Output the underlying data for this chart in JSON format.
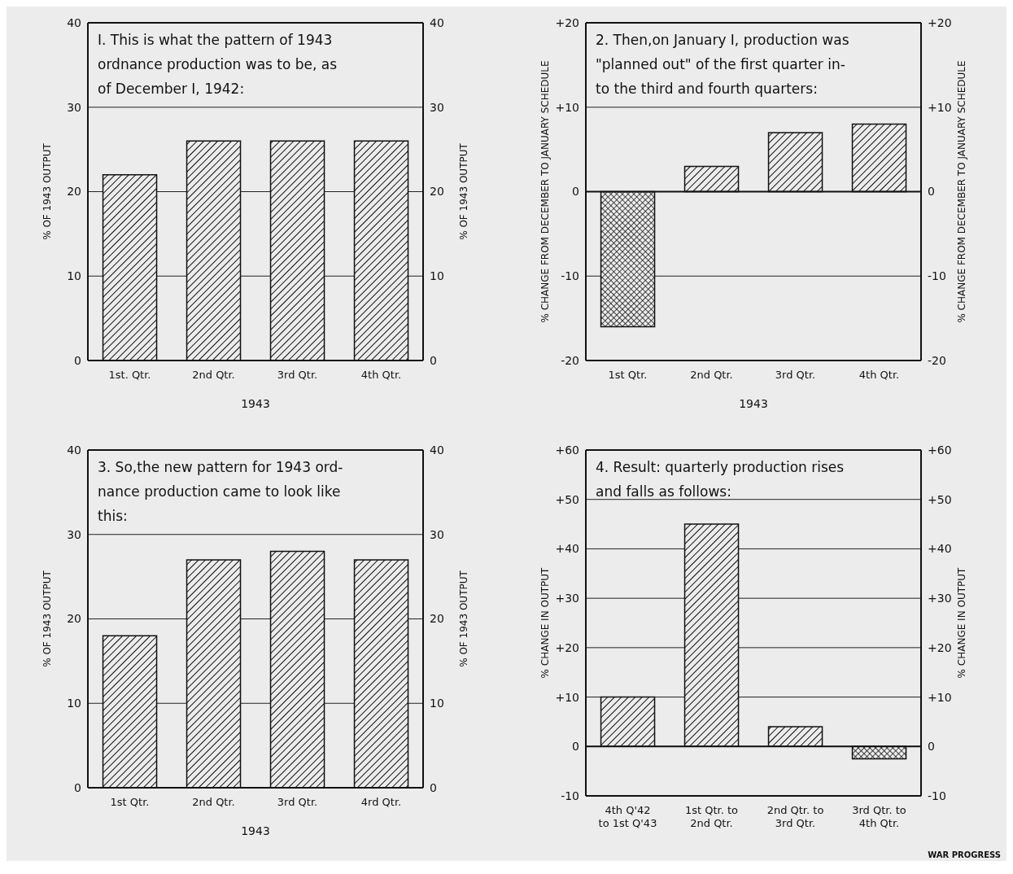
{
  "chart_data": [
    {
      "type": "bar",
      "title": "I. This is what the pattern of 1943\nordnance production was to be, as\nof December I, 1942:",
      "categories": [
        "1st. Qtr.",
        "2nd Qtr.",
        "3rd Qtr.",
        "4th Qtr."
      ],
      "xlabel": "1943",
      "ylabel": "% OF 1943 OUTPUT",
      "y2label": "% OF 1943 OUTPUT",
      "series": [
        {
          "color": "#111111",
          "values": [
            22,
            26,
            26,
            26
          ]
        }
      ],
      "ylim": [
        0,
        40
      ],
      "yticks": [
        0,
        10,
        20,
        30,
        40
      ],
      "y2lim": [
        0,
        40
      ],
      "y2ticks": [
        0,
        10,
        20,
        30,
        40
      ],
      "grid": "y"
    },
    {
      "type": "bar",
      "title": "2. Then,on January I, production was\n\"planned out\" of the first quarter in-\nto the third and fourth quarters:",
      "categories": [
        "1st Qtr.",
        "2nd Qtr.",
        "3rd Qtr.",
        "4th Qtr."
      ],
      "xlabel": "1943",
      "ylabel": "% CHANGE FROM DECEMBER TO JANUARY SCHEDULE",
      "y2label": "% CHANGE FROM DECEMBER TO JANUARY SCHEDULE",
      "series": [
        {
          "color": "#111111",
          "values": [
            -16,
            3,
            7,
            8
          ]
        }
      ],
      "ylim": [
        -20,
        20
      ],
      "yticks": [
        -20,
        -10,
        0,
        {
          "value": 10,
          "label": "+10"
        },
        {
          "value": 20,
          "label": "+20"
        }
      ],
      "y2lim": [
        -20,
        20
      ],
      "y2ticks": [
        -20,
        -10,
        0,
        {
          "value": 10,
          "label": "+10"
        },
        {
          "value": 20,
          "label": "+20"
        }
      ],
      "grid": "y"
    },
    {
      "type": "bar",
      "title": "3. So,the new pattern for 1943 ord-\nnance production came to look like\nthis:",
      "categories": [
        "1st Qtr.",
        "2nd Qtr.",
        "3rd Qtr.",
        "4rd Qtr."
      ],
      "xlabel": "1943",
      "ylabel": "% OF 1943 OUTPUT",
      "y2label": "% OF 1943 OUTPUT",
      "series": [
        {
          "color": "#111111",
          "values": [
            18,
            27,
            28,
            27
          ]
        }
      ],
      "ylim": [
        0,
        40
      ],
      "yticks": [
        0,
        10,
        20,
        30,
        40
      ],
      "y2lim": [
        0,
        40
      ],
      "y2ticks": [
        0,
        10,
        20,
        30,
        40
      ],
      "grid": "y"
    },
    {
      "type": "bar",
      "title": "4. Result: quarterly production rises\nand falls as follows:",
      "categories": [
        "4th Q'42\nto 1st Q'43",
        "1st Qtr. to\n2nd Qtr.",
        "2nd Qtr. to\n3rd Qtr.",
        "3rd Qtr. to\n4th Qtr."
      ],
      "ylabel": "% CHANGE IN OUTPUT",
      "y2label": "% CHANGE IN OUTPUT",
      "series": [
        {
          "color": "#111111",
          "values": [
            10,
            45,
            4,
            -2.5
          ]
        }
      ],
      "ylim": [
        -10,
        60
      ],
      "yticks": [
        -10,
        0,
        {
          "value": 10,
          "label": "+10"
        },
        {
          "value": 20,
          "label": "+20"
        },
        {
          "value": 30,
          "label": "+30"
        },
        {
          "value": 40,
          "label": "+40"
        },
        {
          "value": 50,
          "label": "+50"
        },
        {
          "value": 60,
          "label": "+60"
        }
      ],
      "y2lim": [
        -10,
        60
      ],
      "y2ticks": [
        -10,
        0,
        {
          "value": 10,
          "label": "+10"
        },
        {
          "value": 20,
          "label": "+20"
        },
        {
          "value": 30,
          "label": "+30"
        },
        {
          "value": 40,
          "label": "+40"
        },
        {
          "value": 50,
          "label": "+50"
        },
        {
          "value": 60,
          "label": "+60"
        }
      ],
      "grid": "y",
      "annotations": [
        "WAR PROGRESS"
      ]
    }
  ]
}
